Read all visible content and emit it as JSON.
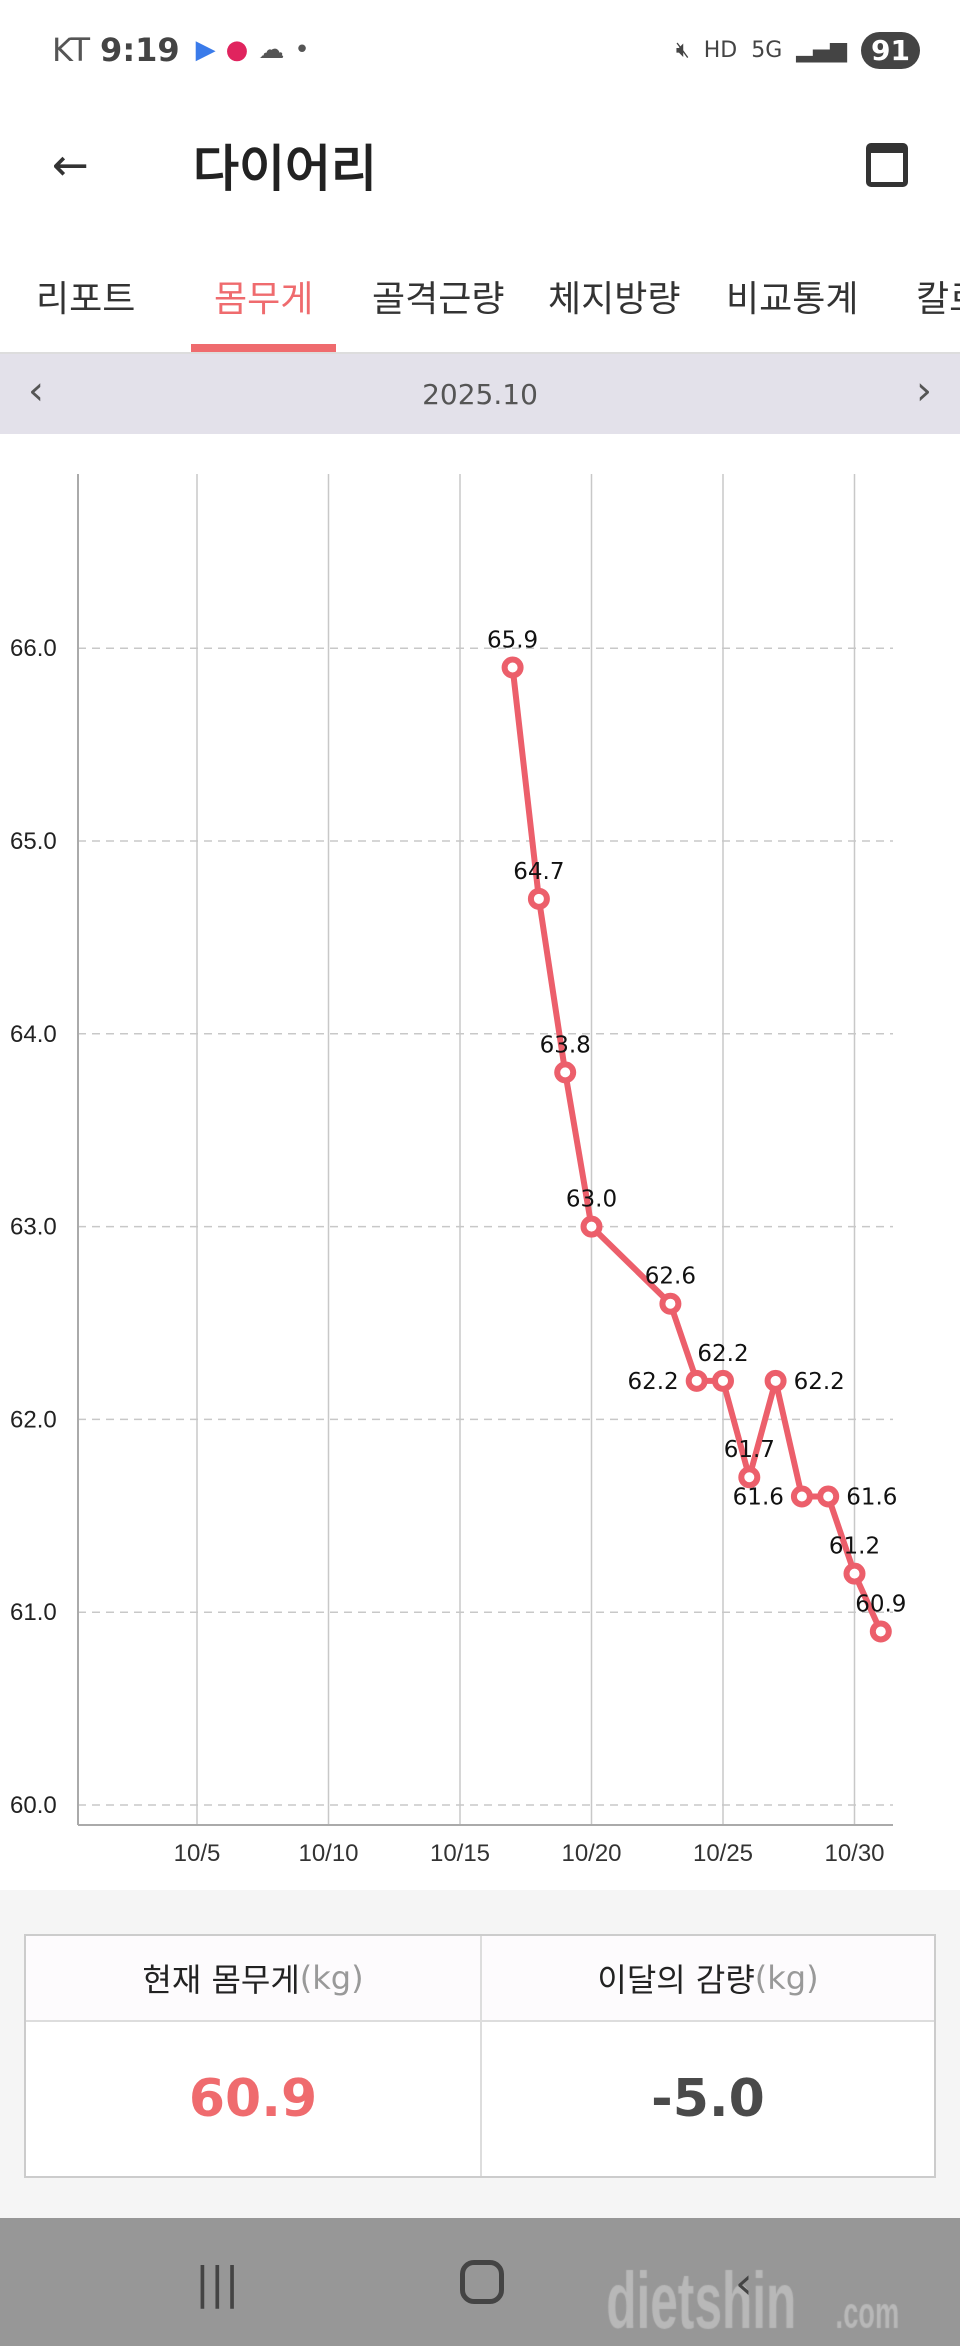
{
  "status_bar": {
    "carrier": "KT",
    "time": "9:19",
    "battery": "91",
    "network": "5G",
    "hd": "HD"
  },
  "header": {
    "title": "다이어리"
  },
  "tabs": [
    {
      "label": "리포트"
    },
    {
      "label": "몸무게",
      "active": true
    },
    {
      "label": "골격근량"
    },
    {
      "label": "체지방량"
    },
    {
      "label": "비교통계"
    },
    {
      "label": "칼로"
    }
  ],
  "date_nav": {
    "period": "2025.10"
  },
  "chart_data": {
    "type": "line",
    "color": "#ec5f6b",
    "x_tick_labels": [
      "10/5",
      "10/10",
      "10/15",
      "10/20",
      "10/25",
      "10/30"
    ],
    "x_ticks_day": [
      5,
      10,
      15,
      20,
      25,
      30
    ],
    "y_tick_labels": [
      "60.0",
      "61.0",
      "62.0",
      "63.0",
      "64.0",
      "65.0",
      "66.0"
    ],
    "ylim": [
      60,
      67
    ],
    "grid": true,
    "points": [
      {
        "date": "10/17",
        "day": 17,
        "value": 65.9,
        "label": "65.9"
      },
      {
        "date": "10/18",
        "day": 18,
        "value": 64.7,
        "label": "64.7"
      },
      {
        "date": "10/19",
        "day": 19,
        "value": 63.8,
        "label": "63.8"
      },
      {
        "date": "10/20",
        "day": 20,
        "value": 63.0,
        "label": "63.0"
      },
      {
        "date": "10/23",
        "day": 23,
        "value": 62.6,
        "label": "62.6"
      },
      {
        "date": "10/24",
        "day": 24,
        "value": 62.2,
        "label": "62.2"
      },
      {
        "date": "10/25",
        "day": 25,
        "value": 62.2,
        "label": "62.2"
      },
      {
        "date": "10/26",
        "day": 26,
        "value": 61.7,
        "label": "61.7"
      },
      {
        "date": "10/27",
        "day": 27,
        "value": 62.2,
        "label": "62.2"
      },
      {
        "date": "10/28",
        "day": 28,
        "value": 61.6,
        "label": "61.6"
      },
      {
        "date": "10/29",
        "day": 29,
        "value": 61.6,
        "label": "61.6"
      },
      {
        "date": "10/30",
        "day": 30,
        "value": 61.2,
        "label": "61.2"
      },
      {
        "date": "10/31",
        "day": 31,
        "value": 60.9,
        "label": "60.9"
      }
    ]
  },
  "summary": {
    "current_label": "현재 몸무게",
    "current_unit": "(kg)",
    "current_value": "60.9",
    "current_color": "#ef6b6e",
    "loss_label": "이달의 감량",
    "loss_unit": "(kg)",
    "loss_value": "-5.0"
  },
  "watermark": "dietshin.com"
}
